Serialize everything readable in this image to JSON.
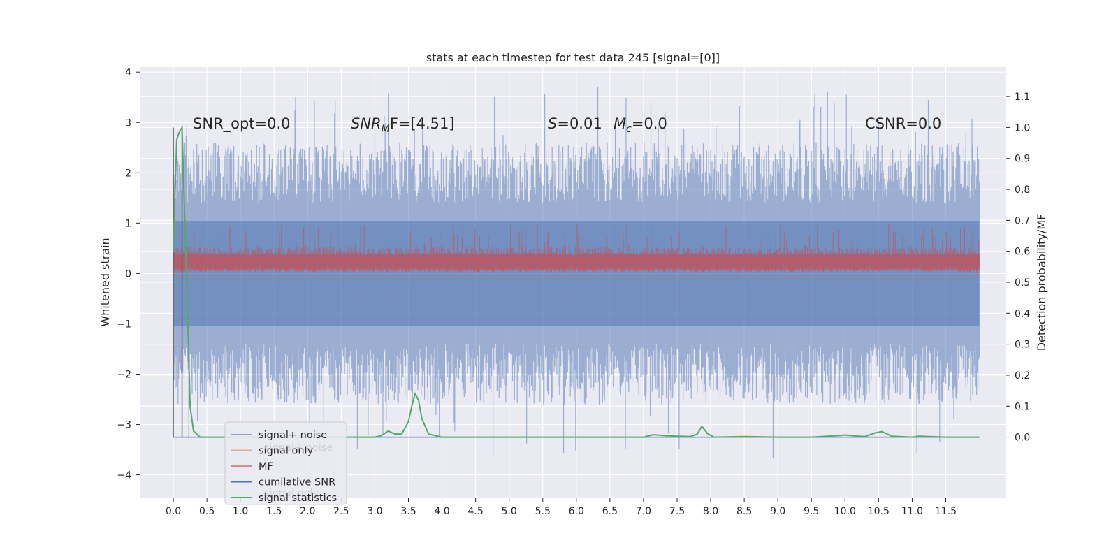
{
  "chart_data": {
    "type": "line",
    "title": "stats at each timestep for test data 245 [signal=[0]]",
    "ylabel": "Whitened strain",
    "y2label": "Detection probability/MF",
    "xlim": [
      -0.5,
      12.4
    ],
    "ylim": [
      -4.45,
      4.1
    ],
    "y2lim": [
      -0.195,
      1.195
    ],
    "xticks": [
      "0.0",
      "0.5",
      "1.0",
      "1.5",
      "2.0",
      "2.5",
      "3.0",
      "3.5",
      "4.0",
      "4.5",
      "5.0",
      "5.5",
      "6.0",
      "6.5",
      "7.0",
      "7.5",
      "8.0",
      "8.5",
      "9.0",
      "9.5",
      "10.0",
      "10.5",
      "11.0",
      "11.5"
    ],
    "yticks": [
      "4",
      "3",
      "2",
      "1",
      "0",
      "−1",
      "−2",
      "−3",
      "−4"
    ],
    "y2ticks": [
      "1.1",
      "1.0",
      "0.9",
      "0.8",
      "0.7",
      "0.6",
      "0.5",
      "0.4",
      "0.3",
      "0.2",
      "0.1",
      "0.0"
    ],
    "grid": true,
    "legend_position": "lower-left",
    "annotations": {
      "snr_opt": "SNR_opt=0.0",
      "snr_mf_var": "SNR",
      "snr_mf_sub": "M",
      "snr_mf_rest": "F=[4.51]",
      "s_var": "S",
      "s_rest": "=0.01",
      "mc_var": "M",
      "mc_sub": "c",
      "mc_rest": "=0.0",
      "csnr": "CSNR=0.0"
    },
    "ghost_legend": [
      "signal+ noise",
      "signal only"
    ],
    "series": [
      {
        "name": "signal+ noise",
        "color": "#4c72b0",
        "axis": "left",
        "description": "whitened noisy strain; envelope roughly between -2.6 and 2.6, occasional peaks near 3.7",
        "x_range": [
          0.0,
          12.0
        ],
        "envelope_typical": [
          -2.6,
          2.6
        ],
        "peaks_max": 3.75,
        "peaks_min": -3.7
      },
      {
        "name": "signal only",
        "color": "#dd8452",
        "axis": "left",
        "x": [
          0.0,
          12.0
        ],
        "y": [
          0.0,
          0.0
        ]
      },
      {
        "name": "MF",
        "color": "#c44e52",
        "axis": "left",
        "x_range": [
          0.0,
          12.0
        ],
        "band": [
          0.0,
          0.45
        ],
        "peaks_max": 1.0
      },
      {
        "name": "cumilative SNR",
        "color": "#4c72b0",
        "axis": "right",
        "x": [
          0.0,
          12.0
        ],
        "y": [
          0.0,
          0.0
        ]
      },
      {
        "name": "signal statistics",
        "color": "#55a868",
        "axis": "right",
        "x": [
          0.0,
          0.05,
          0.08,
          0.1,
          0.13,
          0.16,
          0.2,
          0.25,
          0.3,
          0.4,
          0.6,
          1.0,
          2.0,
          3.0,
          3.1,
          3.2,
          3.3,
          3.4,
          3.5,
          3.55,
          3.6,
          3.65,
          3.7,
          3.8,
          4.0,
          4.5,
          5.0,
          6.0,
          7.0,
          7.15,
          7.3,
          7.5,
          7.7,
          7.8,
          7.87,
          7.95,
          8.05,
          8.5,
          9.0,
          9.5,
          9.9,
          10.0,
          10.2,
          10.3,
          10.45,
          10.55,
          10.7,
          11.0,
          11.1,
          11.5,
          12.0
        ],
        "y": [
          0.6,
          0.96,
          0.98,
          0.99,
          1.0,
          0.78,
          0.5,
          0.1,
          0.02,
          0.0,
          0.0,
          0.0,
          0.0,
          0.0,
          0.005,
          0.02,
          0.01,
          0.01,
          0.05,
          0.1,
          0.14,
          0.12,
          0.06,
          0.01,
          0.0,
          0.0,
          0.0,
          0.0,
          0.0,
          0.008,
          0.005,
          0.003,
          0.002,
          0.01,
          0.035,
          0.012,
          0.0,
          0.002,
          0.0,
          0.0,
          0.005,
          0.007,
          0.003,
          0.002,
          0.014,
          0.018,
          0.003,
          0.0,
          0.003,
          0.0,
          0.0
        ]
      },
      {
        "name": "",
        "color": "#5f5f5f",
        "axis": "right",
        "kind": "vline",
        "x": 0.0,
        "y": [
          0.0,
          1.0
        ]
      },
      {
        "name": "",
        "color": "#5f5f5f",
        "axis": "right",
        "kind": "vline",
        "x": 0.13,
        "y": [
          0.0,
          0.99
        ]
      }
    ]
  }
}
